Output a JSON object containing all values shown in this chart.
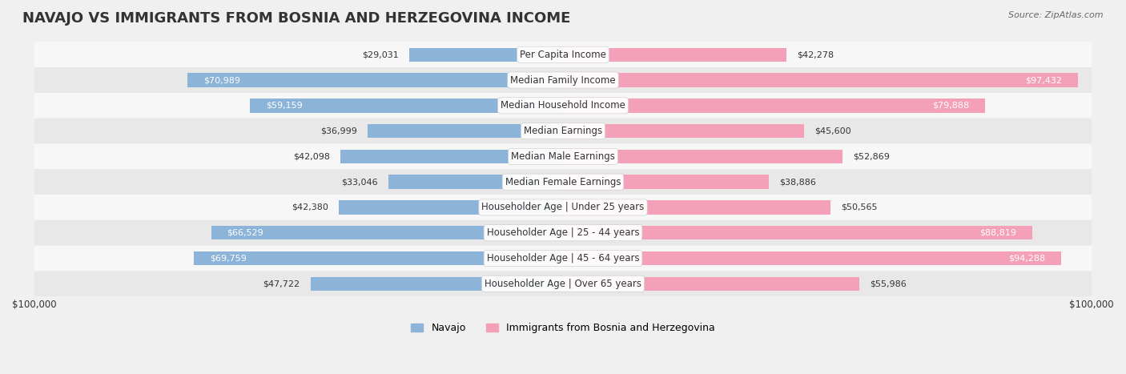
{
  "title": "NAVAJO VS IMMIGRANTS FROM BOSNIA AND HERZEGOVINA INCOME",
  "source": "Source: ZipAtlas.com",
  "categories": [
    "Per Capita Income",
    "Median Family Income",
    "Median Household Income",
    "Median Earnings",
    "Median Male Earnings",
    "Median Female Earnings",
    "Householder Age | Under 25 years",
    "Householder Age | 25 - 44 years",
    "Householder Age | 45 - 64 years",
    "Householder Age | Over 65 years"
  ],
  "navajo_values": [
    29031,
    70989,
    59159,
    36999,
    42098,
    33046,
    42380,
    66529,
    69759,
    47722
  ],
  "bosnia_values": [
    42278,
    97432,
    79888,
    45600,
    52869,
    38886,
    50565,
    88819,
    94288,
    55986
  ],
  "navajo_color": "#8cb4d8",
  "navajo_dark_color": "#6a9fc4",
  "bosnia_color": "#f4a0b8",
  "bosnia_dark_color": "#e8608a",
  "max_value": 100000,
  "xlabel_left": "$100,000",
  "xlabel_right": "$100,000",
  "navajo_label": "Navajo",
  "bosnia_label": "Immigrants from Bosnia and Herzegovina",
  "background_color": "#f0f0f0",
  "row_bg_light": "#f7f7f7",
  "row_bg_dark": "#e8e8e8",
  "title_fontsize": 13,
  "label_fontsize": 8.5,
  "value_fontsize": 8,
  "legend_fontsize": 9
}
